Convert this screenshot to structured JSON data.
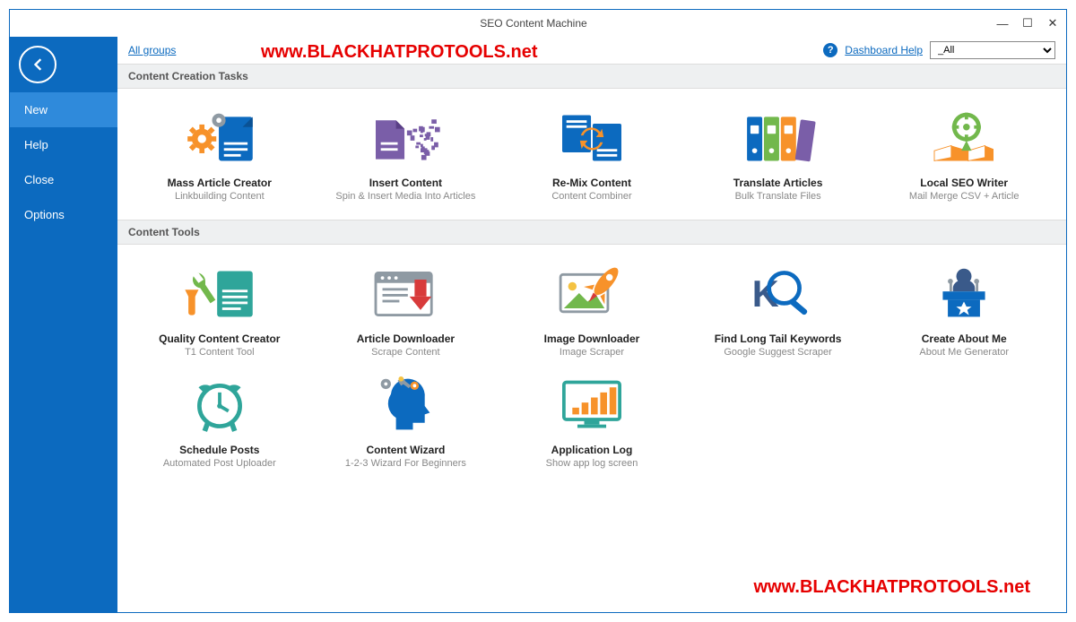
{
  "window": {
    "title": "SEO Content Machine"
  },
  "watermark": "www.BLACKHATPROTOOLS.net",
  "sidebar": {
    "items": [
      {
        "label": "New",
        "active": true
      },
      {
        "label": "Help",
        "active": false
      },
      {
        "label": "Close",
        "active": false
      },
      {
        "label": "Options",
        "active": false
      }
    ]
  },
  "topbar": {
    "all_groups": "All groups",
    "help_link": "Dashboard Help",
    "dropdown_value": "_All"
  },
  "sections": [
    {
      "title": "Content Creation Tasks",
      "tiles": [
        {
          "name": "mass-article-creator",
          "title": "Mass Article Creator",
          "sub": "Linkbuilding Content",
          "icon": "gears-doc"
        },
        {
          "name": "insert-content",
          "title": "Insert Content",
          "sub": "Spin & Insert Media Into Articles",
          "icon": "pixels-doc"
        },
        {
          "name": "remix-content",
          "title": "Re-Mix Content",
          "sub": "Content Combiner",
          "icon": "refresh-docs"
        },
        {
          "name": "translate-articles",
          "title": "Translate Articles",
          "sub": "Bulk Translate Files",
          "icon": "binders"
        },
        {
          "name": "local-seo-writer",
          "title": "Local SEO Writer",
          "sub": "Mail Merge CSV + Article",
          "icon": "map-pin"
        }
      ]
    },
    {
      "title": "Content Tools",
      "tiles": [
        {
          "name": "quality-content-creator",
          "title": "Quality Content Creator",
          "sub": "T1 Content Tool",
          "icon": "wrench-doc"
        },
        {
          "name": "article-downloader",
          "title": "Article Downloader",
          "sub": "Scrape Content",
          "icon": "browser-download"
        },
        {
          "name": "image-downloader",
          "title": "Image Downloader",
          "sub": "Image Scraper",
          "icon": "image-rocket"
        },
        {
          "name": "find-long-tail",
          "title": "Find Long Tail Keywords",
          "sub": "Google Suggest Scraper",
          "icon": "k-lens"
        },
        {
          "name": "create-about-me",
          "title": "Create About Me",
          "sub": "About Me Generator",
          "icon": "speaker-star"
        },
        {
          "name": "schedule-posts",
          "title": "Schedule Posts",
          "sub": "Automated Post Uploader",
          "icon": "alarm-clock"
        },
        {
          "name": "content-wizard",
          "title": "Content Wizard",
          "sub": "1-2-3 Wizard For Beginners",
          "icon": "head-gears"
        },
        {
          "name": "application-log",
          "title": "Application Log",
          "sub": "Show app log screen",
          "icon": "monitor-bars"
        }
      ]
    }
  ],
  "colors": {
    "brand": "#0c6abf",
    "accent": "#2f8adb",
    "orange": "#f7922a",
    "green": "#72b84c",
    "teal": "#2fa59a",
    "red": "#d83b3b",
    "purple": "#7a5ea8",
    "gray": "#8f9aa3",
    "darkblue": "#3a5a8a",
    "yellow": "#f4c242"
  }
}
